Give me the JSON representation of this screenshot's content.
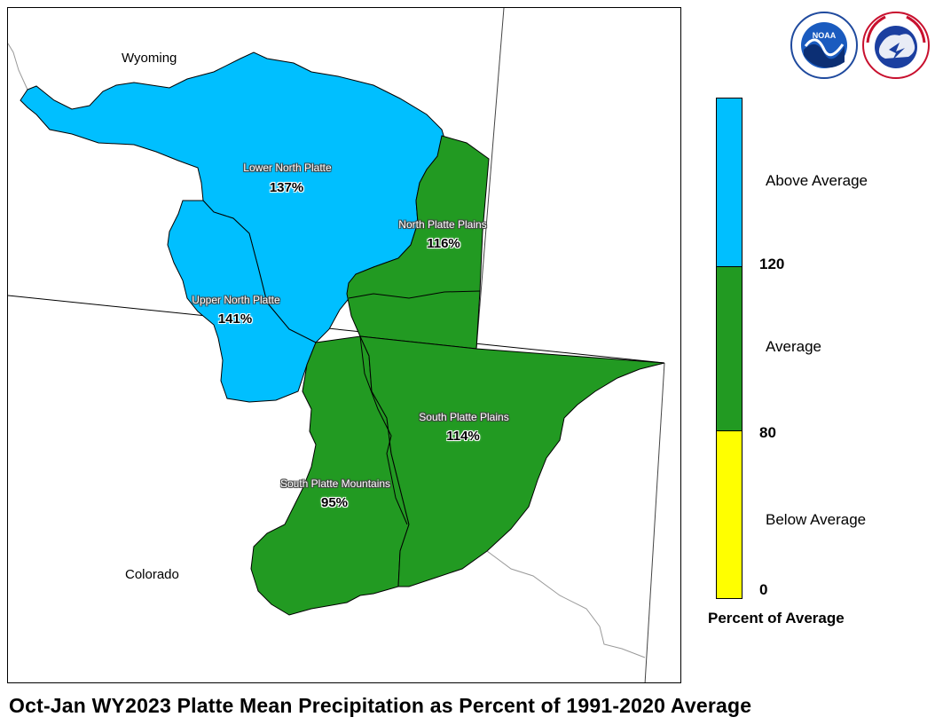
{
  "title": "Oct-Jan WY2023 Platte Mean Precipitation as Percent of 1991-2020 Average",
  "state_labels": {
    "wyoming": "Wyoming",
    "colorado": "Colorado"
  },
  "basins": [
    {
      "name": "Lower North Platte",
      "value": "137%",
      "category": "Above Average"
    },
    {
      "name": "North Platte Plains",
      "value": "116%",
      "category": "Average"
    },
    {
      "name": "Upper North Platte",
      "value": "141%",
      "category": "Above Average"
    },
    {
      "name": "South Platte Plains",
      "value": "114%",
      "category": "Average"
    },
    {
      "name": "South Platte Mountains",
      "value": "95%",
      "category": "Average"
    }
  ],
  "legend": {
    "title": "Percent of Average",
    "categories": [
      {
        "label": "Above Average",
        "color": "#00bfff",
        "range": [
          120,
          null
        ]
      },
      {
        "label": "Average",
        "color": "#229a22",
        "range": [
          80,
          120
        ]
      },
      {
        "label": "Below Average",
        "color": "#ffff00",
        "range": [
          0,
          80
        ]
      }
    ],
    "ticks": [
      "120",
      "80",
      "0"
    ]
  },
  "logos": {
    "noaa": {
      "text": "NOAA",
      "icon": "noaa-logo"
    },
    "nws": {
      "text": "NATIONAL WEATHER SERVICE",
      "icon": "nws-logo"
    }
  },
  "colors": {
    "above": "#00bfff",
    "average": "#229a22",
    "below": "#ffff00",
    "boundary": "#000000"
  }
}
